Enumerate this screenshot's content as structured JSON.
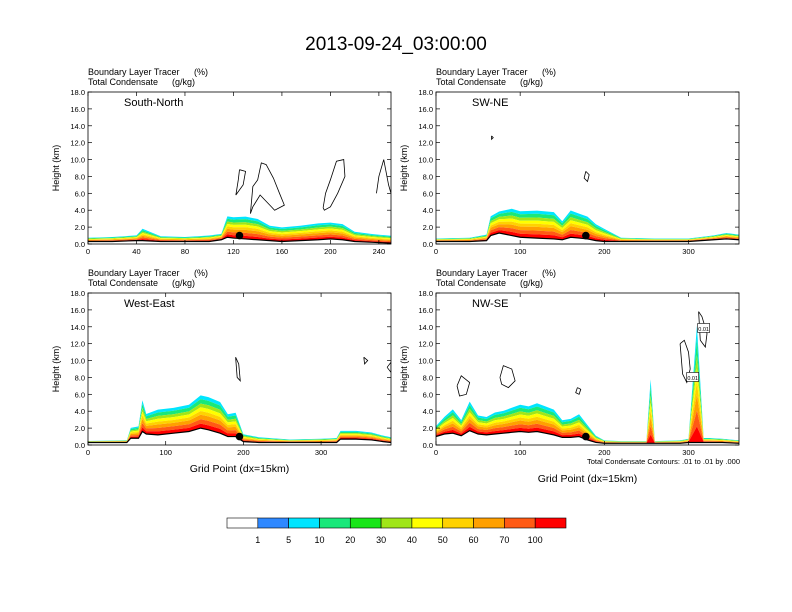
{
  "title": "2013-09-24_03:00:00",
  "panel_header": {
    "line1_left": "Boundary Layer Tracer",
    "line1_right": "(%)",
    "line2_left": "Total Condensate",
    "line2_right": "(g/kg)"
  },
  "contour_note": "Total Condensate Contours: .01 to .01 by .000",
  "legend": {
    "colors": [
      "#ffffff",
      "#2e88ff",
      "#00e5ff",
      "#19e87a",
      "#19e619",
      "#a0e619",
      "#ffff00",
      "#ffd200",
      "#ffa000",
      "#ff5a14",
      "#ff0000"
    ],
    "labels": [
      "1",
      "5",
      "10",
      "20",
      "30",
      "40",
      "50",
      "60",
      "70",
      "100"
    ]
  },
  "chart_data": [
    {
      "type": "heatmap",
      "name": "South-North",
      "xlabel": "",
      "ylabel": "Height (km)",
      "xlim": [
        0,
        250
      ],
      "ylim": [
        0,
        18
      ],
      "x_ticks": [
        0,
        40,
        80,
        120,
        160,
        200,
        240
      ],
      "y_ticks": [
        "0.0",
        "2.0",
        "4.0",
        "6.0",
        "8.0",
        "10.0",
        "12.0",
        "14.0",
        "16.0",
        "18.0"
      ],
      "marker": {
        "x": 125,
        "y": 1.0
      },
      "boundary_layer_top_km": {
        "x": [
          0,
          20,
          40,
          45,
          60,
          80,
          90,
          100,
          110,
          115,
          120,
          130,
          140,
          150,
          160,
          175,
          190,
          200,
          210,
          220,
          235,
          250
        ],
        "top": [
          0.8,
          0.9,
          1.1,
          2.0,
          1.0,
          0.9,
          1.0,
          1.1,
          1.3,
          3.6,
          3.5,
          3.6,
          3.3,
          2.4,
          2.2,
          2.4,
          2.7,
          2.8,
          2.6,
          1.6,
          1.3,
          1.1
        ],
        "ground": [
          0.3,
          0.3,
          0.4,
          0.4,
          0.3,
          0.3,
          0.3,
          0.3,
          0.5,
          0.8,
          0.7,
          0.6,
          0.5,
          0.4,
          0.3,
          0.4,
          0.5,
          0.6,
          0.5,
          0.3,
          0.2,
          0.1
        ]
      },
      "cloud_contours_km": [
        {
          "x": [
            125,
            130,
            128,
            122,
            124,
            125
          ],
          "y": [
            8.8,
            8.6,
            7.0,
            5.8,
            7.6,
            8.8
          ]
        },
        {
          "x": [
            134,
            136,
            140,
            143,
            147,
            153,
            158,
            162,
            154,
            150,
            142,
            136,
            134
          ],
          "y": [
            3.6,
            6.8,
            7.6,
            9.6,
            9.4,
            7.8,
            6.0,
            4.6,
            4.0,
            4.6,
            5.8,
            4.4,
            3.6
          ]
        },
        {
          "x": [
            194,
            196,
            200,
            205,
            211,
            212,
            206,
            200,
            195,
            194
          ],
          "y": [
            4.3,
            6.0,
            7.6,
            9.8,
            10.0,
            8.0,
            6.0,
            4.4,
            4.0,
            4.3
          ]
        },
        {
          "x": [
            238,
            240,
            244,
            248,
            250
          ],
          "y": [
            6.0,
            8.0,
            10.0,
            7.0,
            6.0
          ]
        }
      ]
    },
    {
      "type": "heatmap",
      "name": "SW-NE",
      "xlabel": "",
      "ylabel": "Height (km)",
      "xlim": [
        0,
        360
      ],
      "ylim": [
        0,
        18
      ],
      "x_ticks": [
        0,
        100,
        200,
        300
      ],
      "y_ticks": [
        "0.0",
        "2.0",
        "4.0",
        "6.0",
        "8.0",
        "10.0",
        "12.0",
        "14.0",
        "16.0",
        "18.0"
      ],
      "marker": {
        "x": 178,
        "y": 1.0
      },
      "boundary_layer_top_km": {
        "x": [
          0,
          40,
          60,
          65,
          75,
          90,
          100,
          120,
          140,
          150,
          160,
          170,
          180,
          190,
          200,
          220,
          260,
          300,
          330,
          345,
          360
        ],
        "top": [
          0.7,
          0.8,
          1.2,
          3.6,
          4.2,
          4.6,
          4.3,
          4.4,
          4.2,
          3.0,
          4.4,
          4.0,
          3.6,
          2.6,
          2.0,
          0.8,
          0.7,
          0.7,
          1.1,
          1.4,
          1.2
        ],
        "ground": [
          0.3,
          0.3,
          0.4,
          1.0,
          1.3,
          1.0,
          0.8,
          0.7,
          0.6,
          0.5,
          0.8,
          0.7,
          0.6,
          0.4,
          0.3,
          0.3,
          0.3,
          0.3,
          0.5,
          0.6,
          0.5
        ]
      },
      "cloud_contours_km": [
        {
          "x": [
            178,
            182,
            180,
            176,
            178
          ],
          "y": [
            8.6,
            8.2,
            7.4,
            7.8,
            8.6
          ]
        },
        {
          "x": [
            66,
            68,
            66,
            66
          ],
          "y": [
            12.8,
            12.6,
            12.4,
            12.8
          ]
        }
      ]
    },
    {
      "type": "heatmap",
      "name": "West-East",
      "xlabel": "Grid Point (dx=15km)",
      "ylabel": "Height (km)",
      "xlim": [
        0,
        390
      ],
      "ylim": [
        0,
        18
      ],
      "x_ticks": [
        0,
        100,
        200,
        300
      ],
      "y_ticks": [
        "0.0",
        "2.0",
        "4.0",
        "6.0",
        "8.0",
        "10.0",
        "12.0",
        "14.0",
        "16.0",
        "18.0"
      ],
      "marker": {
        "x": 195,
        "y": 1.0
      },
      "boundary_layer_top_km": {
        "x": [
          0,
          50,
          55,
          65,
          70,
          75,
          90,
          110,
          130,
          145,
          155,
          170,
          180,
          190,
          200,
          220,
          260,
          300,
          320,
          325,
          345,
          365,
          380,
          390
        ],
        "top": [
          0.5,
          0.6,
          2.2,
          2.4,
          5.8,
          4.0,
          4.6,
          4.8,
          5.2,
          6.4,
          6.2,
          5.6,
          4.0,
          4.2,
          1.4,
          1.0,
          0.7,
          0.8,
          0.9,
          1.8,
          1.8,
          1.6,
          1.2,
          1.0
        ],
        "ground": [
          0.3,
          0.3,
          0.8,
          0.8,
          1.6,
          1.3,
          1.2,
          1.4,
          1.6,
          2.0,
          1.8,
          1.4,
          1.0,
          1.0,
          0.4,
          0.3,
          0.3,
          0.3,
          0.3,
          0.7,
          0.7,
          0.6,
          0.4,
          0.3
        ]
      },
      "cloud_contours_km": [
        {
          "x": [
            190,
            194,
            196,
            192,
            190
          ],
          "y": [
            10.4,
            9.6,
            7.6,
            8.0,
            10.4
          ]
        },
        {
          "x": [
            355,
            360,
            356,
            355
          ],
          "y": [
            10.4,
            10.0,
            9.6,
            10.4
          ]
        },
        {
          "x": [
            385,
            390,
            390,
            385
          ],
          "y": [
            9.2,
            9.8,
            8.6,
            9.2
          ]
        }
      ]
    },
    {
      "type": "heatmap",
      "name": "NW-SE",
      "xlabel": "Grid Point (dx=15km)",
      "ylabel": "Height (km)",
      "xlim": [
        0,
        360
      ],
      "ylim": [
        0,
        18
      ],
      "x_ticks": [
        0,
        100,
        200,
        300
      ],
      "y_ticks": [
        "0.0",
        "2.0",
        "4.0",
        "6.0",
        "8.0",
        "10.0",
        "12.0",
        "14.0",
        "16.0",
        "18.0"
      ],
      "marker": {
        "x": 178,
        "y": 1.0
      },
      "boundary_layer_top_km": {
        "x": [
          0,
          10,
          20,
          30,
          40,
          50,
          60,
          70,
          80,
          90,
          100,
          110,
          120,
          130,
          140,
          150,
          160,
          170,
          180,
          190,
          200,
          220,
          250,
          255,
          260,
          290,
          300,
          310,
          318,
          325,
          340,
          360
        ],
        "top": [
          2.4,
          3.6,
          4.6,
          3.2,
          5.6,
          3.8,
          3.6,
          4.2,
          4.4,
          4.8,
          5.2,
          5.0,
          5.4,
          5.0,
          4.6,
          3.2,
          3.4,
          4.0,
          2.6,
          1.2,
          0.6,
          0.5,
          0.5,
          8.8,
          0.5,
          0.6,
          0.8,
          16.0,
          0.9,
          0.9,
          0.8,
          0.6
        ],
        "ground": [
          1.0,
          1.3,
          1.4,
          1.1,
          1.7,
          1.3,
          1.2,
          1.3,
          1.4,
          1.5,
          1.6,
          1.5,
          1.6,
          1.4,
          1.2,
          0.9,
          0.9,
          1.0,
          0.6,
          0.3,
          0.2,
          0.2,
          0.2,
          0.2,
          0.2,
          0.2,
          0.3,
          0.3,
          0.3,
          0.3,
          0.3,
          0.2
        ]
      },
      "cloud_contours_km": [
        {
          "x": [
            76,
            80,
            90,
            94,
            86,
            78,
            76
          ],
          "y": [
            8.0,
            9.4,
            9.0,
            7.6,
            6.8,
            7.2,
            8.0
          ]
        },
        {
          "x": [
            168,
            172,
            170,
            166,
            168
          ],
          "y": [
            6.8,
            6.6,
            6.0,
            6.2,
            6.8
          ]
        },
        {
          "x": [
            290,
            295,
            300,
            302,
            298,
            293,
            290
          ],
          "y": [
            12.0,
            12.4,
            11.0,
            9.0,
            7.4,
            8.4,
            12.0
          ]
        },
        {
          "x": [
            312,
            316,
            322,
            320,
            314,
            312
          ],
          "y": [
            15.8,
            15.2,
            13.2,
            11.6,
            12.4,
            15.8
          ]
        },
        {
          "x": [
            25,
            30,
            40,
            36,
            28,
            25
          ],
          "y": [
            7.0,
            8.2,
            7.4,
            6.0,
            5.8,
            7.0
          ]
        }
      ],
      "contour_labels": [
        {
          "text": "0.01",
          "x": 318,
          "y": 13.8
        },
        {
          "text": "0.01",
          "x": 305,
          "y": 8.0
        }
      ]
    }
  ]
}
